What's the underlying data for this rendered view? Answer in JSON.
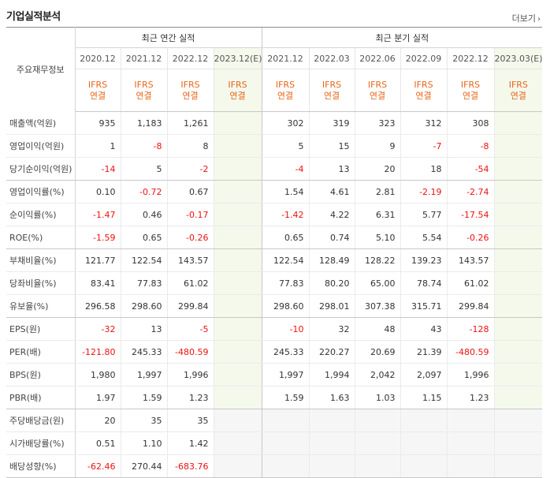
{
  "title": "기업실적분석",
  "more_label": "더보기",
  "row_header": "주요재무정보",
  "annual_group": "최근 연간 실적",
  "quarter_group": "최근 분기 실적",
  "periods": [
    "2020.12",
    "2021.12",
    "2022.12",
    "2023.12(E)",
    "2021.12",
    "2022.03",
    "2022.06",
    "2022.09",
    "2022.12",
    "2023.03(E)"
  ],
  "ifrs_label": "IFRS",
  "consolidated_label": "연결",
  "rows": [
    {
      "label": "매출액(억원)",
      "values": [
        "935",
        "1,183",
        "1,261",
        "",
        "302",
        "319",
        "323",
        "312",
        "308",
        ""
      ]
    },
    {
      "label": "영업이익(억원)",
      "values": [
        "1",
        "-8",
        "8",
        "",
        "5",
        "15",
        "9",
        "-7",
        "-8",
        ""
      ]
    },
    {
      "label": "당기순이익(억원)",
      "values": [
        "-14",
        "5",
        "-2",
        "",
        "-4",
        "13",
        "20",
        "18",
        "-54",
        ""
      ]
    },
    {
      "label": "영업이익률(%)",
      "values": [
        "0.10",
        "-0.72",
        "0.67",
        "",
        "1.54",
        "4.61",
        "2.81",
        "-2.19",
        "-2.74",
        ""
      ]
    },
    {
      "label": "순이익률(%)",
      "values": [
        "-1.47",
        "0.46",
        "-0.17",
        "",
        "-1.42",
        "4.22",
        "6.31",
        "5.77",
        "-17.54",
        ""
      ]
    },
    {
      "label": "ROE(%)",
      "values": [
        "-1.59",
        "0.65",
        "-0.26",
        "",
        "0.65",
        "0.74",
        "5.10",
        "5.54",
        "-0.26",
        ""
      ]
    },
    {
      "label": "부채비율(%)",
      "values": [
        "121.77",
        "122.54",
        "143.57",
        "",
        "122.54",
        "128.49",
        "128.22",
        "139.23",
        "143.57",
        ""
      ]
    },
    {
      "label": "당좌비율(%)",
      "values": [
        "83.41",
        "77.83",
        "61.02",
        "",
        "77.83",
        "80.20",
        "65.00",
        "78.74",
        "61.02",
        ""
      ]
    },
    {
      "label": "유보율(%)",
      "values": [
        "296.58",
        "298.60",
        "299.84",
        "",
        "298.60",
        "298.01",
        "307.38",
        "315.71",
        "299.84",
        ""
      ]
    },
    {
      "label": "EPS(원)",
      "values": [
        "-32",
        "13",
        "-5",
        "",
        "-10",
        "32",
        "48",
        "43",
        "-128",
        ""
      ]
    },
    {
      "label": "PER(배)",
      "values": [
        "-121.80",
        "245.33",
        "-480.59",
        "",
        "245.33",
        "220.27",
        "20.69",
        "21.39",
        "-480.59",
        ""
      ]
    },
    {
      "label": "BPS(원)",
      "values": [
        "1,980",
        "1,997",
        "1,996",
        "",
        "1,997",
        "1,994",
        "2,042",
        "2,097",
        "1,996",
        ""
      ]
    },
    {
      "label": "PBR(배)",
      "values": [
        "1.97",
        "1.59",
        "1.23",
        "",
        "1.59",
        "1.63",
        "1.03",
        "1.15",
        "1.23",
        ""
      ]
    },
    {
      "label": "주당배당금(원)",
      "values": [
        "20",
        "35",
        "35",
        "",
        "",
        "",
        "",
        "",
        "",
        ""
      ]
    },
    {
      "label": "시가배당률(%)",
      "values": [
        "0.51",
        "1.10",
        "1.42",
        "",
        "",
        "",
        "",
        "",
        "",
        ""
      ]
    },
    {
      "label": "배당성향(%)",
      "values": [
        "-62.46",
        "270.44",
        "-683.76",
        "",
        "",
        "",
        "",
        "",
        "",
        ""
      ]
    }
  ]
}
